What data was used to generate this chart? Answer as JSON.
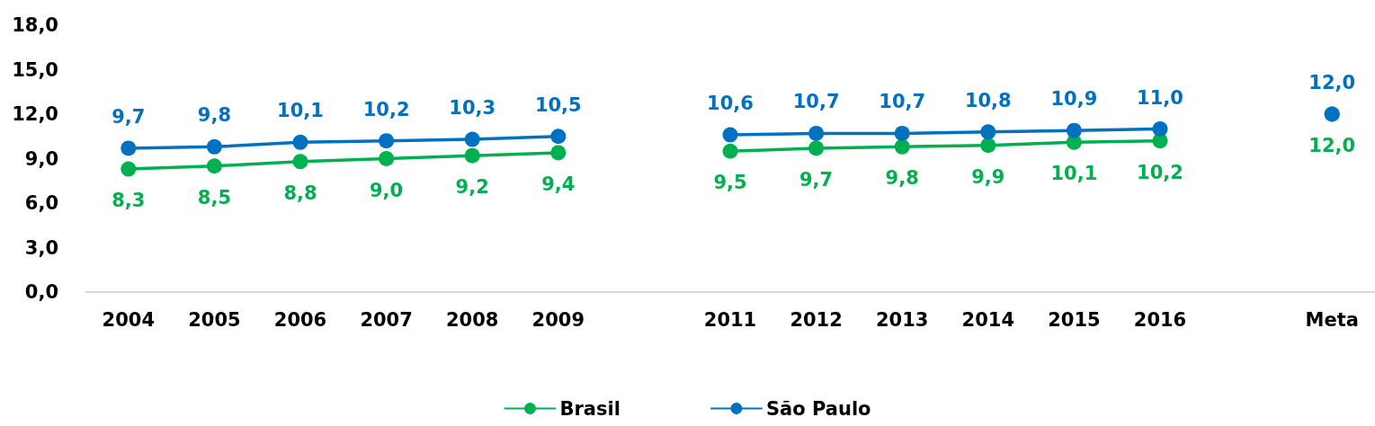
{
  "chart_data": {
    "type": "line",
    "categories": [
      "2004",
      "2005",
      "2006",
      "2007",
      "2008",
      "2009",
      null,
      "2011",
      "2012",
      "2013",
      "2014",
      "2015",
      "2016",
      null,
      "Meta"
    ],
    "series": [
      {
        "name": "Brasil",
        "color": "#00b050",
        "values": [
          8.3,
          8.5,
          8.8,
          9.0,
          9.2,
          9.4,
          null,
          9.5,
          9.7,
          9.8,
          9.9,
          10.1,
          10.2,
          null,
          12.0
        ],
        "value_labels": [
          "8,3",
          "8,5",
          "8,8",
          "9,0",
          "9,2",
          "9,4",
          null,
          "9,5",
          "9,7",
          "9,8",
          "9,9",
          "10,1",
          "10,2",
          null,
          "12,0"
        ]
      },
      {
        "name": "São Paulo",
        "color": "#0070c0",
        "values": [
          9.7,
          9.8,
          10.1,
          10.2,
          10.3,
          10.5,
          null,
          10.6,
          10.7,
          10.7,
          10.8,
          10.9,
          11.0,
          null,
          12.0
        ],
        "value_labels": [
          "9,7",
          "9,8",
          "10,1",
          "10,2",
          "10,3",
          "10,5",
          null,
          "10,6",
          "10,7",
          "10,7",
          "10,8",
          "10,9",
          "11,0",
          null,
          "12,0"
        ]
      }
    ],
    "ylim": [
      0,
      18
    ],
    "yticks": [
      {
        "value": 0,
        "label": "0,0"
      },
      {
        "value": 3,
        "label": "3,0"
      },
      {
        "value": 6,
        "label": "6,0"
      },
      {
        "value": 9,
        "label": "9,0"
      },
      {
        "value": 12,
        "label": "12,0"
      },
      {
        "value": 15,
        "label": "15,0"
      },
      {
        "value": 18,
        "label": "18,0"
      }
    ],
    "grid": false,
    "legend": "bottom",
    "marker": "circle",
    "line_style": "solid"
  }
}
